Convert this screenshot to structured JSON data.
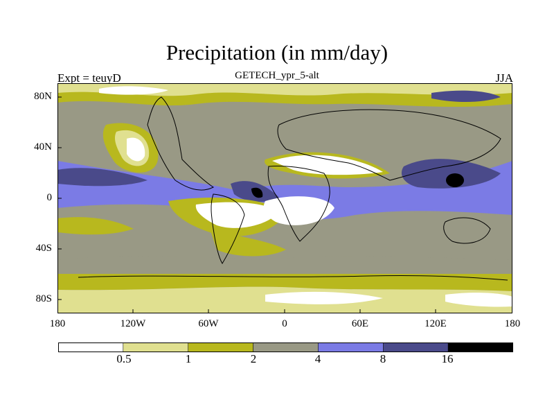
{
  "title": "Precipitation (in mm/day)",
  "subtitle": "GETECH_ypr_5-alt",
  "left_label": "Expt = teuyD",
  "right_label": "JJA",
  "y_ticks": [
    "80N",
    "40N",
    "0",
    "40S",
    "80S"
  ],
  "x_ticks": [
    "180",
    "120W",
    "60W",
    "0",
    "60E",
    "120E",
    "180"
  ],
  "colorbar": {
    "labels": [
      "0.5",
      "1",
      "2",
      "4",
      "8",
      "16"
    ],
    "colors": [
      "#ffffff",
      "#e0e090",
      "#b8b81e",
      "#999985",
      "#7b7be5",
      "#4a4a8a",
      "#000000"
    ]
  }
}
